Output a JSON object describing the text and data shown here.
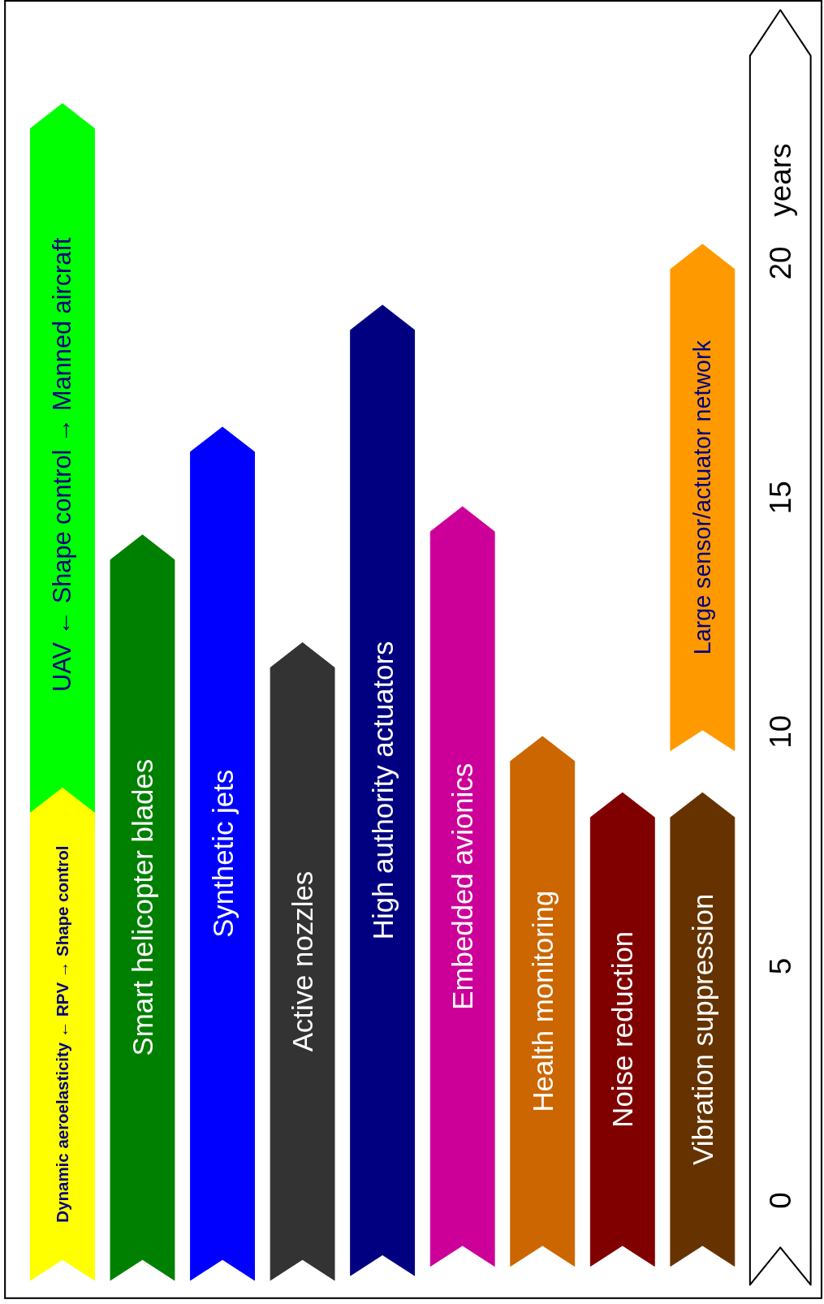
{
  "chart_data": {
    "type": "bar",
    "categories": [
      "Dynamic aeroelasticity ← RPV → Shape control",
      "Smart helicopter blades",
      "Synthetic jets",
      "Active nozzles",
      "High authority actuators",
      "Embedded avionics",
      "Health monitoring",
      "Noise reduction",
      "Vibration suppression"
    ],
    "ylabel": "years",
    "ylim": [
      -1.8,
      25.4
    ],
    "yticks": [
      0,
      5,
      10,
      15,
      20
    ],
    "series": [
      {
        "colors": [
          "#00ff00",
          null,
          null,
          null,
          null,
          null,
          null,
          null,
          "#ff9900"
        ],
        "base": [
          8.0,
          null,
          null,
          null,
          null,
          null,
          null,
          null,
          9.6
        ],
        "values": [
          15.4,
          null,
          null,
          null,
          null,
          null,
          null,
          null,
          10.8
        ],
        "value_labels": [
          "UAV ← Shape control → Manned aircraft",
          null,
          null,
          null,
          null,
          null,
          null,
          null,
          "Large sensor/actuator network"
        ]
      },
      {
        "colors": [
          "#ffff00",
          "#008000",
          "#0000ff",
          "#333333",
          "#000080",
          "#cc0099",
          "#cc6600",
          "#800000",
          "#663300"
        ],
        "base": [
          -1.7,
          -1.7,
          -1.7,
          -1.7,
          -1.6,
          -1.4,
          -1.4,
          -1.4,
          -1.4
        ],
        "values": [
          10.5,
          15.9,
          18.2,
          13.6,
          20.7,
          16.2,
          11.3,
          10.1,
          10.1
        ]
      }
    ]
  }
}
